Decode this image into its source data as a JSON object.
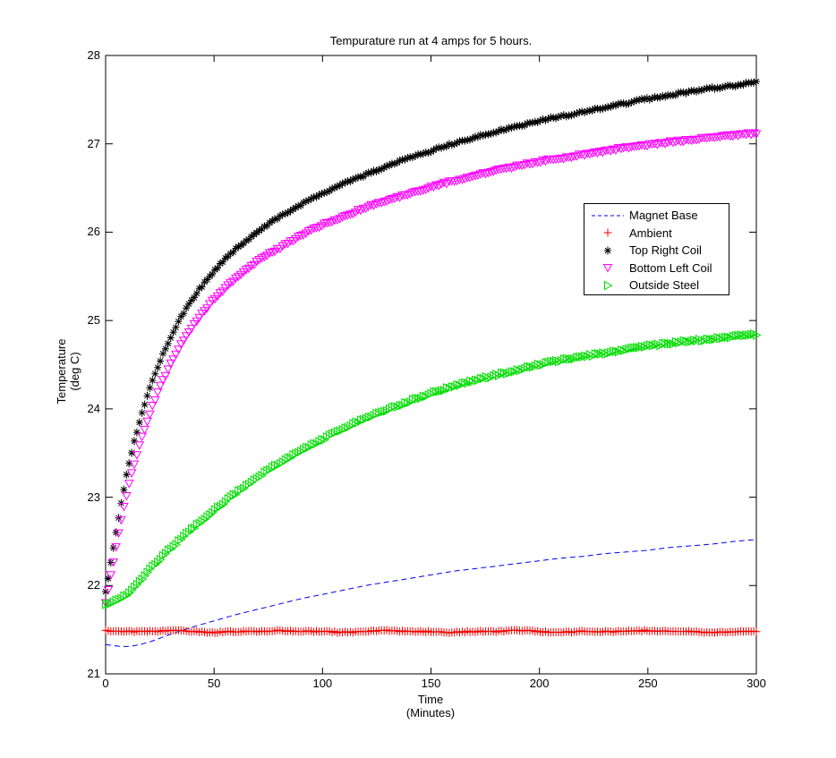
{
  "figure": {
    "title": "Tempurature run at 4 amps for 5 hours.",
    "xlabel_line1": "Time",
    "xlabel_line2": "(Minutes)",
    "ylabel_line1": "Temperature",
    "ylabel_line2": "(deg C)",
    "background_color": "#ffffff",
    "axis_color": "#000000"
  },
  "chart_data": {
    "type": "line",
    "title": "Tempurature run at 4 amps for 5 hours.",
    "xlabel": "Time (Minutes)",
    "ylabel": "Temperature (deg C)",
    "xlim": [
      0,
      300
    ],
    "ylim": [
      21,
      28
    ],
    "xticks": [
      0,
      50,
      100,
      150,
      200,
      250,
      300
    ],
    "yticks": [
      21,
      22,
      23,
      24,
      25,
      26,
      27,
      28
    ],
    "grid": false,
    "legend_position": "right-center",
    "x": [
      0,
      10,
      20,
      30,
      40,
      50,
      60,
      70,
      80,
      90,
      100,
      110,
      120,
      130,
      140,
      150,
      160,
      170,
      180,
      190,
      200,
      210,
      220,
      230,
      240,
      250,
      260,
      270,
      280,
      290,
      300
    ],
    "series": [
      {
        "name": "Magnet Base",
        "color": "#0000ee",
        "line": "dashed",
        "marker": "none",
        "values": [
          21.33,
          21.31,
          21.36,
          21.45,
          21.53,
          21.6,
          21.67,
          21.73,
          21.79,
          21.85,
          21.9,
          21.95,
          22.0,
          22.04,
          22.08,
          22.12,
          22.16,
          22.19,
          22.22,
          22.25,
          22.28,
          22.31,
          22.33,
          22.36,
          22.38,
          22.4,
          22.43,
          22.45,
          22.47,
          22.5,
          22.52
        ]
      },
      {
        "name": "Ambient",
        "color": "#f00000",
        "line": "none",
        "marker": "plus",
        "values": [
          21.49,
          21.48,
          21.48,
          21.49,
          21.48,
          21.47,
          21.48,
          21.48,
          21.49,
          21.48,
          21.48,
          21.47,
          21.48,
          21.49,
          21.48,
          21.48,
          21.47,
          21.48,
          21.48,
          21.49,
          21.48,
          21.47,
          21.48,
          21.48,
          21.48,
          21.49,
          21.48,
          21.48,
          21.47,
          21.48,
          21.48
        ]
      },
      {
        "name": "Top Right Coil",
        "color": "#000000",
        "line": "none",
        "marker": "asterisk",
        "values": [
          21.92,
          23.29,
          24.2,
          24.81,
          25.24,
          25.56,
          25.81,
          26.0,
          26.17,
          26.31,
          26.44,
          26.55,
          26.65,
          26.75,
          26.84,
          26.92,
          27.0,
          27.07,
          27.14,
          27.2,
          27.26,
          27.31,
          27.36,
          27.41,
          27.46,
          27.51,
          27.55,
          27.59,
          27.63,
          27.66,
          27.7
        ]
      },
      {
        "name": "Bottom Left Coil",
        "color": "#ff00ff",
        "line": "none",
        "marker": "triangle-down",
        "values": [
          21.8,
          23.07,
          23.92,
          24.51,
          24.93,
          25.24,
          25.47,
          25.67,
          25.82,
          25.96,
          26.08,
          26.18,
          26.28,
          26.36,
          26.44,
          26.51,
          26.58,
          26.64,
          26.7,
          26.75,
          26.8,
          26.84,
          26.88,
          26.92,
          26.96,
          26.99,
          27.02,
          27.05,
          27.08,
          27.1,
          27.12
        ]
      },
      {
        "name": "Outside Steel",
        "color": "#00dd00",
        "line": "none",
        "marker": "triangle-right",
        "values": [
          21.78,
          21.9,
          22.17,
          22.42,
          22.64,
          22.85,
          23.04,
          23.22,
          23.38,
          23.52,
          23.65,
          23.78,
          23.89,
          23.99,
          24.08,
          24.17,
          24.25,
          24.32,
          24.38,
          24.44,
          24.5,
          24.55,
          24.59,
          24.63,
          24.67,
          24.71,
          24.74,
          24.77,
          24.79,
          24.82,
          24.84
        ]
      }
    ]
  }
}
